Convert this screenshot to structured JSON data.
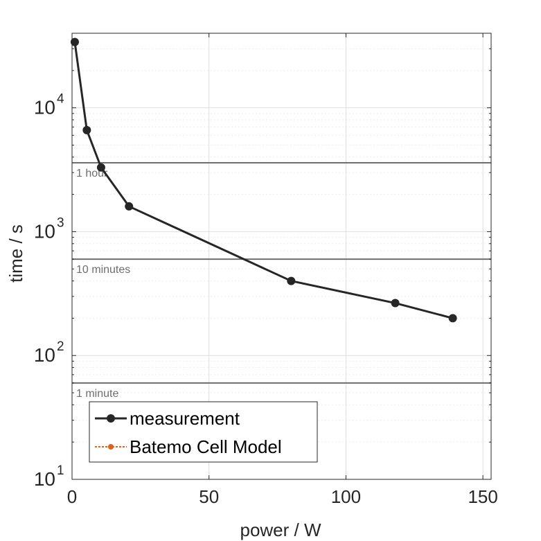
{
  "chart_data": {
    "type": "line",
    "xlabel": "power / W",
    "ylabel": "time / s",
    "xlim": [
      0,
      153
    ],
    "ylim": [
      10,
      40000
    ],
    "yscale": "log",
    "grid": true,
    "xticks": [
      0,
      50,
      100,
      150
    ],
    "yticks": [
      {
        "value": 10,
        "base": "10",
        "exp": "1"
      },
      {
        "value": 100,
        "base": "10",
        "exp": "2"
      },
      {
        "value": 1000,
        "base": "10",
        "exp": "3"
      },
      {
        "value": 10000,
        "base": "10",
        "exp": "4"
      }
    ],
    "series": [
      {
        "name": "measurement",
        "color": "#262626",
        "x": [
          1,
          5.4,
          10.6,
          20.8,
          80,
          118,
          139
        ],
        "y": [
          34000,
          6600,
          3300,
          1600,
          400,
          265,
          200
        ]
      },
      {
        "name": "Batemo Cell Model",
        "color": "#e0611b",
        "x": [],
        "y": []
      }
    ],
    "reference_lines": [
      {
        "value": 3600,
        "label": "1 hour"
      },
      {
        "value": 600,
        "label": "10 minutes"
      },
      {
        "value": 60,
        "label": "1 minute"
      }
    ],
    "legend_position": "bottom-left",
    "colors": {
      "axis": "#262626",
      "grid": "#dedede",
      "minor_grid": "#ebebeb",
      "reference": "#6e6e6e"
    }
  }
}
